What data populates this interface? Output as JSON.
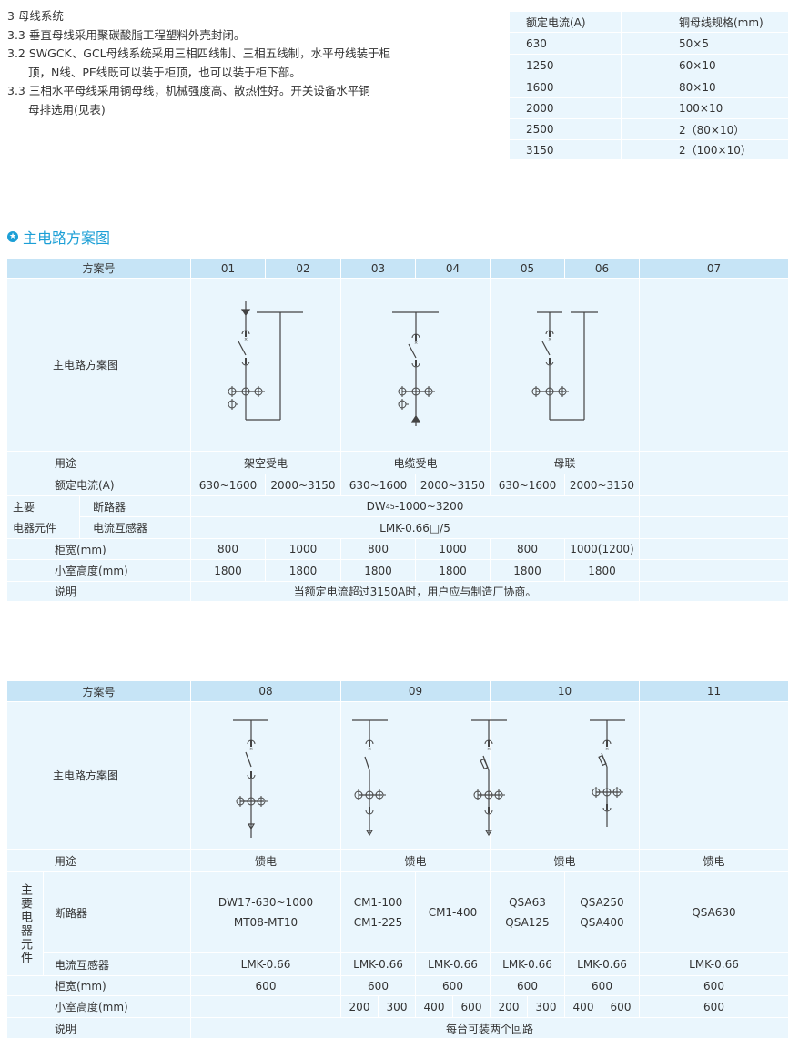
{
  "intro": {
    "lines": [
      "3 母线系统",
      "3.3 垂直母线采用聚碳酸脂工程塑料外壳封闭。",
      "3.2 SWGCK、GCL母线系统采用三相四线制、三相五线制，水平母线装于柜",
      "顶，N线、PE线既可以装于柜顶，也可以装于柜下部。",
      "3.3 三相水平母线采用铜母线，机械强度高、散热性好。开关设备水平铜",
      "母排选用(见表)"
    ]
  },
  "busbar_table": {
    "headers": [
      "额定电流(A)",
      "铜母线规格(mm)"
    ],
    "rows": [
      [
        "630",
        "50×5"
      ],
      [
        "1250",
        "60×10"
      ],
      [
        "1600",
        "80×10"
      ],
      [
        "2000",
        "100×10"
      ],
      [
        "2500",
        "2（80×10）"
      ],
      [
        "3150",
        "2（100×10）"
      ]
    ]
  },
  "section_title": "主电路方案图",
  "colors": {
    "accent": "#1c9fd6",
    "header_bg": "#c6e4f6",
    "cell_bg": "#eaf6fd"
  },
  "table1": {
    "scheme_label": "方案号",
    "schemes": [
      "01",
      "02",
      "03",
      "04",
      "05",
      "06",
      "07"
    ],
    "diagram_label": "主电路方案图",
    "use_label": "用途",
    "uses": [
      "架空受电",
      "电缆受电",
      "母联"
    ],
    "current_label": "额定电流(A)",
    "currents": [
      "630~1600",
      "2000~3150",
      "630~1600",
      "2000~3150",
      "630~1600",
      "2000~3150"
    ],
    "main_label_1": "主要",
    "main_label_2": "电器元件",
    "breaker_label": "断路器",
    "breaker_main": "DW",
    "breaker_sub": "45",
    "breaker_rest": "-1000~3200",
    "ct_label": "电流互感器",
    "ct": "LMK-0.66□/5",
    "width_label": "柜宽(mm)",
    "widths": [
      "800",
      "1000",
      "800",
      "1000",
      "800",
      "1000(1200)"
    ],
    "height_label": "小室高度(mm)",
    "heights": [
      "1800",
      "1800",
      "1800",
      "1800",
      "1800",
      "1800"
    ],
    "note_label": "说明",
    "note": "当额定电流超过3150A时，用户应与制造厂协商。"
  },
  "table2": {
    "scheme_label": "方案号",
    "schemes": [
      "08",
      "09",
      "10",
      "11"
    ],
    "diagram_label": "主电路方案图",
    "use_label": "用途",
    "uses": [
      "馈电",
      "馈电",
      "馈电",
      "馈电"
    ],
    "main_label": "主要电器元件",
    "breaker_label": "断路器",
    "breakers": [
      [
        "DW17-630~1000",
        "MT08-MT10"
      ],
      [
        "CM1-100",
        "CM1-225"
      ],
      [
        "CM1-400"
      ],
      [
        "QSA63",
        "QSA125"
      ],
      [
        "QSA250",
        "QSA400"
      ],
      [
        "QSA630"
      ]
    ],
    "ct_label": "电流互感器",
    "cts": [
      "LMK-0.66",
      "LMK-0.66",
      "LMK-0.66",
      "LMK-0.66",
      "LMK-0.66",
      "LMK-0.66"
    ],
    "width_label": "柜宽(mm)",
    "widths": [
      "600",
      "600",
      "600",
      "600",
      "600",
      "600"
    ],
    "height_label": "小室高度(mm)",
    "heights": [
      "200",
      "300",
      "400",
      "600",
      "200",
      "300",
      "400",
      "600",
      "600"
    ],
    "note_label": "说明",
    "note": "每台可装两个回路"
  }
}
